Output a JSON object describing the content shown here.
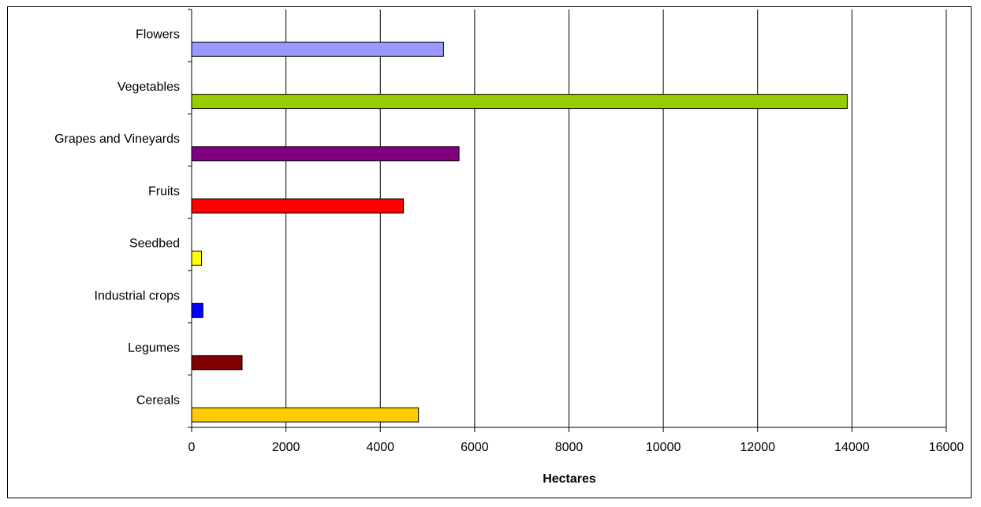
{
  "chart_data": {
    "type": "bar",
    "orientation": "horizontal",
    "categories": [
      "Flowers",
      "Vegetables",
      "Grapes and Vineyards",
      "Fruits",
      "Seedbed",
      "Industrial crops",
      "Legumes",
      "Cereals"
    ],
    "values": [
      5340,
      13900,
      5670,
      4490,
      210,
      240,
      1070,
      4810
    ],
    "colors": [
      "#9999ff",
      "#99cc00",
      "#800080",
      "#ff0000",
      "#ffff00",
      "#0000ff",
      "#800000",
      "#ffcc00"
    ],
    "xlabel": "Hectares",
    "ylabel": "",
    "xlim": [
      0,
      16000
    ],
    "xticks": [
      "0",
      "2000",
      "4000",
      "6000",
      "8000",
      "10000",
      "12000",
      "14000",
      "16000"
    ],
    "grid": "vertical",
    "legend": "none"
  }
}
